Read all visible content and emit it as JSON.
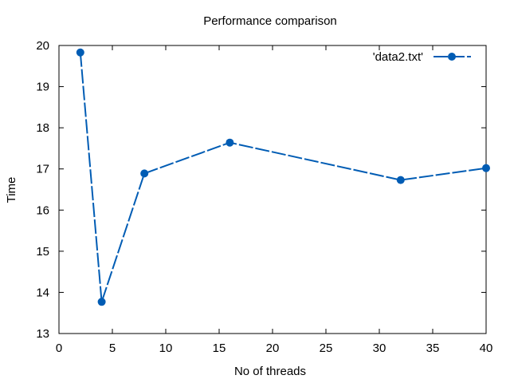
{
  "chart_data": {
    "type": "line",
    "title": "Performance comparison",
    "xlabel": "No of threads",
    "ylabel": "Time",
    "xlim": [
      0,
      40
    ],
    "ylim": [
      13,
      20
    ],
    "xticks": [
      0,
      5,
      10,
      15,
      20,
      25,
      30,
      35,
      40
    ],
    "yticks": [
      13,
      14,
      15,
      16,
      17,
      18,
      19,
      20
    ],
    "grid": false,
    "legend_position": "top-right",
    "series": [
      {
        "name": "'data2.txt'",
        "color": "#005cb4",
        "marker": "circle",
        "line_style": "dashed",
        "x": [
          2,
          4,
          8,
          16,
          32,
          40
        ],
        "y": [
          19.83,
          13.77,
          16.89,
          17.64,
          16.73,
          17.02
        ]
      }
    ]
  }
}
